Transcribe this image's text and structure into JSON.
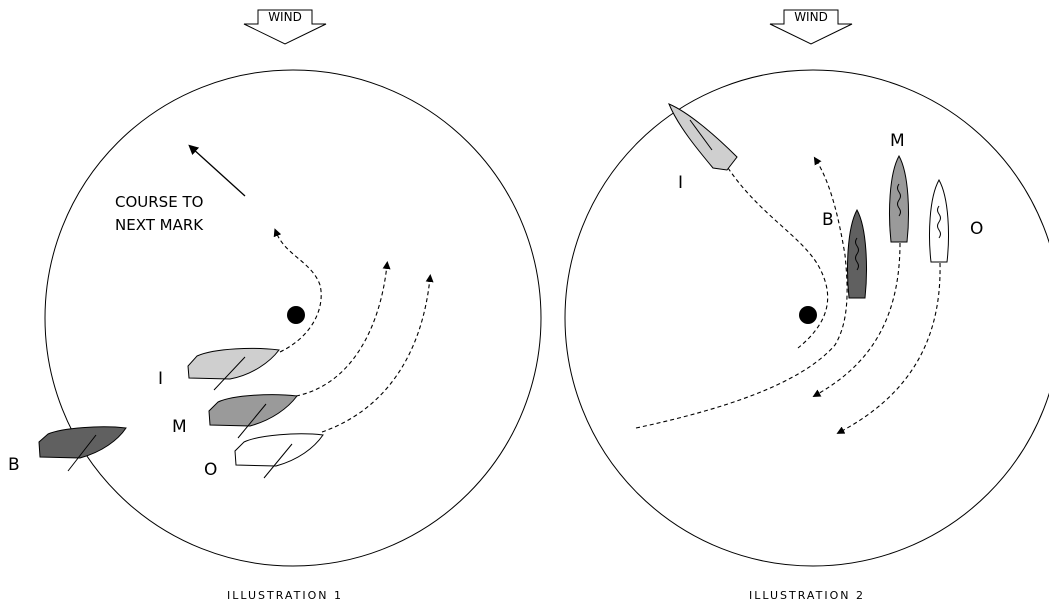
{
  "wind_label": "WIND",
  "illustrations": [
    {
      "caption": "ILLUSTRATION 1",
      "mark_note_line1": "COURSE TO",
      "mark_note_line2": "NEXT MARK",
      "boats": [
        {
          "label": "I",
          "color": "#cfcfcf"
        },
        {
          "label": "M",
          "color": "#9a9a9a"
        },
        {
          "label": "O",
          "color": "#ffffff"
        },
        {
          "label": "B",
          "color": "#606060"
        }
      ]
    },
    {
      "caption": "ILLUSTRATION 2",
      "boats": [
        {
          "label": "I",
          "color": "#cfcfcf"
        },
        {
          "label": "B",
          "color": "#606060"
        },
        {
          "label": "M",
          "color": "#9a9a9a"
        },
        {
          "label": "O",
          "color": "#ffffff"
        }
      ]
    }
  ],
  "colors": {
    "mark": "#000000",
    "outline": "#000000",
    "background": "#ffffff"
  }
}
